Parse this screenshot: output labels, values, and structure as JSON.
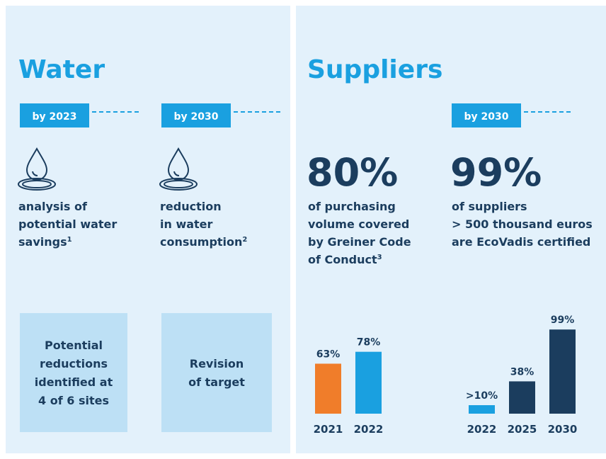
{
  "water": {
    "title": "Water",
    "columns": [
      {
        "tag": "by 2023",
        "lines": [
          "analysis of",
          "potential water",
          "savings"
        ],
        "note": "1",
        "box": [
          "Potential",
          "reductions",
          "identified at",
          "4 of 6 sites"
        ]
      },
      {
        "tag": "by 2030",
        "lines": [
          "reduction",
          "in water",
          "consumption"
        ],
        "note": "2",
        "box": [
          "Revision",
          "of target"
        ]
      }
    ]
  },
  "suppliers": {
    "title": "Suppliers",
    "tag": "by 2030",
    "columns": [
      {
        "figure": "80%",
        "lines": [
          "of purchasing",
          "volume covered",
          "by Greiner Code",
          "of Conduct"
        ],
        "note": "3"
      },
      {
        "figure": "99%",
        "lines": [
          "of suppliers",
          "> 500 thousand euros",
          "are EcoVadis certified"
        ]
      }
    ]
  },
  "chart_data": [
    {
      "type": "bar",
      "categories": [
        "2021",
        "2022"
      ],
      "values": [
        63,
        78
      ],
      "value_labels": [
        "63%",
        "78%"
      ],
      "colors": [
        "#f07d2a",
        "#1aa0e0"
      ]
    },
    {
      "type": "bar",
      "categories": [
        "2022",
        "2025",
        "2030"
      ],
      "values": [
        10,
        38,
        99
      ],
      "value_labels": [
        ">10%",
        "38%",
        "99%"
      ],
      "colors": [
        "#1aa0e0",
        "#1b3d5e",
        "#1b3d5e"
      ]
    }
  ]
}
